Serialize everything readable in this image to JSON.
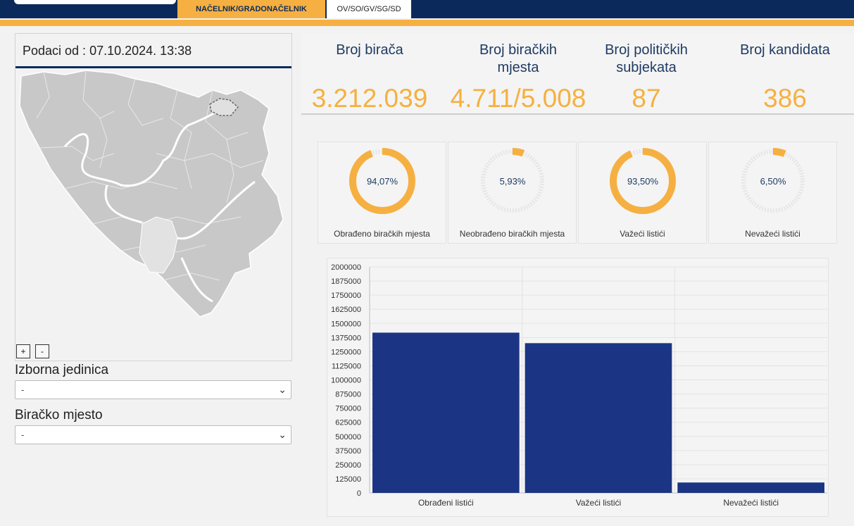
{
  "tabs": [
    {
      "label": "NAČELNIK/GRADONAČELNIK",
      "active": true
    },
    {
      "label": "OV/SO/GV/SG/SD",
      "active": false
    }
  ],
  "left": {
    "data_timestamp": "Podaci od : 07.10.2024. 13:38",
    "zoom_in": "+",
    "zoom_out": "-",
    "izborna_jedinica": {
      "label": "Izborna jedinica",
      "value": "-"
    },
    "biracko_mjesto": {
      "label": "Biračko mjesto",
      "value": "-"
    }
  },
  "stats": [
    {
      "label": "Broj birača",
      "value": "3.212.039"
    },
    {
      "label": "Broj biračkih mjesta",
      "value": "4.711/5.008"
    },
    {
      "label": "Broj političkih subjekata",
      "value": "87"
    },
    {
      "label": "Broj kandidata",
      "value": "386"
    }
  ],
  "gauges": [
    {
      "label": "Obrađeno biračkih mjesta",
      "text": "94,07%",
      "percent": 94.07
    },
    {
      "label": "Neobrađeno biračkih mjesta",
      "text": "5,93%",
      "percent": 5.93
    },
    {
      "label": "Važeći listići",
      "text": "93,50%",
      "percent": 93.5
    },
    {
      "label": "Nevažeći listići",
      "text": "6,50%",
      "percent": 6.5
    }
  ],
  "colors": {
    "navy": "#0b2a5b",
    "accent": "#f5b041",
    "bar": "#1b3584",
    "map_fill": "#c8c8c8",
    "map_highlight": "#e2e2e2"
  },
  "chart_data": {
    "type": "bar",
    "categories": [
      "Obrađeni listići",
      "Važeći listići",
      "Nevažeći listići"
    ],
    "values": [
      1418000,
      1325000,
      92000
    ],
    "ylim": [
      0,
      2000000
    ],
    "yticks": [
      "0",
      "125000",
      "250000",
      "375000",
      "500000",
      "625000",
      "750000",
      "875000",
      "1000000",
      "1125000",
      "1250000",
      "1375000",
      "1500000",
      "1625000",
      "1750000",
      "1875000",
      "2000000"
    ],
    "grid": true,
    "legend": "none"
  }
}
